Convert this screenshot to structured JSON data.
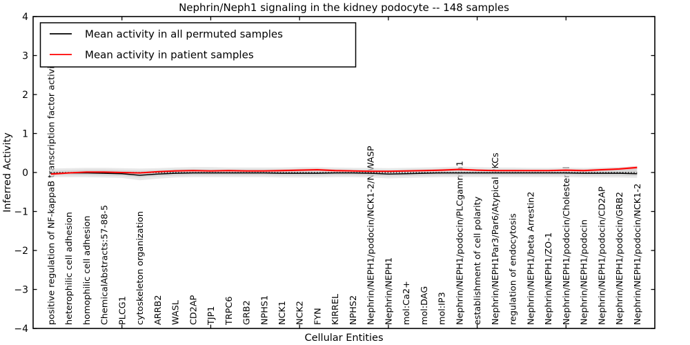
{
  "title": "Nephrin/Neph1 signaling in the kidney podocyte -- 148 samples",
  "legend": {
    "items": [
      {
        "label": "Mean activity in all permuted samples",
        "color": "#000000"
      },
      {
        "label": "Mean activity in patient samples",
        "color": "#ff0000"
      }
    ]
  },
  "chart_data": {
    "type": "line",
    "title": "Nephrin/Neph1 signaling in the kidney podocyte -- 148 samples",
    "xlabel": "Cellular Entities",
    "ylabel": "Inferred Activity",
    "ylim": [
      -4,
      4
    ],
    "ytick_values": [
      4,
      3,
      2,
      1,
      0,
      -1,
      -2,
      -3,
      -4
    ],
    "ytick_labels": [
      "4",
      "3",
      "2",
      "1",
      "0",
      "−1",
      "−2",
      "−3",
      "−4"
    ],
    "zero_line": true,
    "legend_position": "upper left",
    "grid": false,
    "categories": [
      "positive regulation of NF-kappaB transcription factor activity",
      "heterophilic cell adhesion",
      "homophilic cell adhesion",
      "ChemicalAbstracts:57-88-5",
      "PLCG1",
      "cytoskeleton organization",
      "ARRB2",
      "WASL",
      "CD2AP",
      "TJP1",
      "TRPC6",
      "GRB2",
      "NPHS1",
      "NCK1",
      "NCK2",
      "FYN",
      "KIRREL",
      "NPHS2",
      "Nephrin/NEPH1/podocin/NCK1-2/N-WASP",
      "Nephrin/NEPH1",
      "mol:Ca2+",
      "mol:DAG",
      "mol:IP3",
      "Nephrin/NEPH1/podocin/PLCgamma1",
      "establishment of cell polarity",
      "Nephrin/NEPH1Par3/Par6/Atypical PKCs",
      "regulation of endocytosis",
      "Nephrin/NEPH1/beta Arrestin2",
      "Nephrin/NEPH1/ZO-1",
      "Nephrin/NEPH1/podocin/Cholesterol",
      "Nephrin/NEPH1/podocin",
      "Nephrin/NEPH1/podocin/CD2AP",
      "Nephrin/NEPH1/podocin/GRB2",
      "Nephrin/NEPH1/podocin/NCK1-2"
    ],
    "series": [
      {
        "name": "Mean activity in all permuted samples",
        "color": "#000000",
        "values": [
          -0.03,
          -0.01,
          -0.01,
          -0.02,
          -0.03,
          -0.07,
          -0.04,
          -0.02,
          -0.01,
          -0.01,
          -0.01,
          -0.01,
          -0.01,
          -0.02,
          -0.02,
          -0.02,
          -0.01,
          -0.01,
          -0.02,
          -0.04,
          -0.03,
          -0.02,
          -0.01,
          -0.01,
          -0.01,
          -0.01,
          -0.01,
          -0.01,
          -0.01,
          -0.01,
          -0.02,
          -0.02,
          -0.02,
          -0.03
        ]
      },
      {
        "name": "Mean activity in patient samples",
        "color": "#ff0000",
        "values": [
          -0.04,
          -0.01,
          0.01,
          0.01,
          0.0,
          -0.01,
          0.02,
          0.04,
          0.05,
          0.04,
          0.05,
          0.04,
          0.04,
          0.05,
          0.06,
          0.07,
          0.05,
          0.04,
          0.03,
          0.03,
          0.04,
          0.05,
          0.06,
          0.08,
          0.06,
          0.05,
          0.05,
          0.05,
          0.05,
          0.06,
          0.05,
          0.07,
          0.09,
          0.13
        ]
      }
    ],
    "bands": [
      {
        "name": "permuted-spread-outer",
        "color": "#dcdcdc",
        "opacity": 0.65,
        "upper": [
          0.1,
          0.11,
          0.12,
          0.12,
          0.11,
          0.1,
          0.11,
          0.13,
          0.14,
          0.14,
          0.13,
          0.13,
          0.13,
          0.13,
          0.14,
          0.14,
          0.13,
          0.12,
          0.12,
          0.11,
          0.12,
          0.13,
          0.14,
          0.15,
          0.14,
          0.13,
          0.13,
          0.12,
          0.12,
          0.13,
          0.12,
          0.13,
          0.14,
          0.16
        ],
        "lower": [
          -0.12,
          -0.12,
          -0.12,
          -0.13,
          -0.14,
          -0.2,
          -0.16,
          -0.13,
          -0.12,
          -0.12,
          -0.12,
          -0.12,
          -0.12,
          -0.13,
          -0.13,
          -0.13,
          -0.12,
          -0.12,
          -0.13,
          -0.15,
          -0.14,
          -0.13,
          -0.12,
          -0.12,
          -0.12,
          -0.12,
          -0.12,
          -0.12,
          -0.12,
          -0.12,
          -0.13,
          -0.13,
          -0.13,
          -0.14
        ]
      },
      {
        "name": "permuted-spread-inner",
        "color": "#cfcfcf",
        "opacity": 0.7,
        "upper": [
          0.05,
          0.06,
          0.07,
          0.07,
          0.06,
          0.05,
          0.06,
          0.08,
          0.09,
          0.08,
          0.08,
          0.08,
          0.08,
          0.08,
          0.09,
          0.09,
          0.08,
          0.07,
          0.07,
          0.06,
          0.07,
          0.08,
          0.09,
          0.09,
          0.08,
          0.08,
          0.08,
          0.07,
          0.07,
          0.08,
          0.07,
          0.08,
          0.09,
          0.11
        ],
        "lower": [
          -0.07,
          -0.07,
          -0.07,
          -0.08,
          -0.09,
          -0.13,
          -0.1,
          -0.08,
          -0.07,
          -0.07,
          -0.07,
          -0.07,
          -0.07,
          -0.08,
          -0.08,
          -0.08,
          -0.07,
          -0.07,
          -0.08,
          -0.1,
          -0.09,
          -0.08,
          -0.07,
          -0.07,
          -0.07,
          -0.07,
          -0.07,
          -0.07,
          -0.07,
          -0.07,
          -0.08,
          -0.08,
          -0.08,
          -0.09
        ]
      },
      {
        "name": "patient-spread",
        "color": "#ff8888",
        "opacity": 0.4,
        "upper": [
          -0.01,
          0.01,
          0.03,
          0.03,
          0.02,
          0.01,
          0.04,
          0.06,
          0.07,
          0.06,
          0.07,
          0.06,
          0.06,
          0.08,
          0.09,
          0.1,
          0.08,
          0.06,
          0.05,
          0.05,
          0.06,
          0.07,
          0.09,
          0.11,
          0.08,
          0.07,
          0.07,
          0.07,
          0.07,
          0.09,
          0.08,
          0.1,
          0.12,
          0.17
        ],
        "lower": [
          -0.07,
          -0.03,
          -0.01,
          -0.01,
          -0.02,
          -0.03,
          0.0,
          0.02,
          0.03,
          0.02,
          0.03,
          0.02,
          0.02,
          0.02,
          0.03,
          0.04,
          0.02,
          0.02,
          0.01,
          0.01,
          0.02,
          0.03,
          0.03,
          0.05,
          0.04,
          0.03,
          0.03,
          0.03,
          0.03,
          0.03,
          0.02,
          0.04,
          0.06,
          0.09
        ]
      }
    ]
  }
}
